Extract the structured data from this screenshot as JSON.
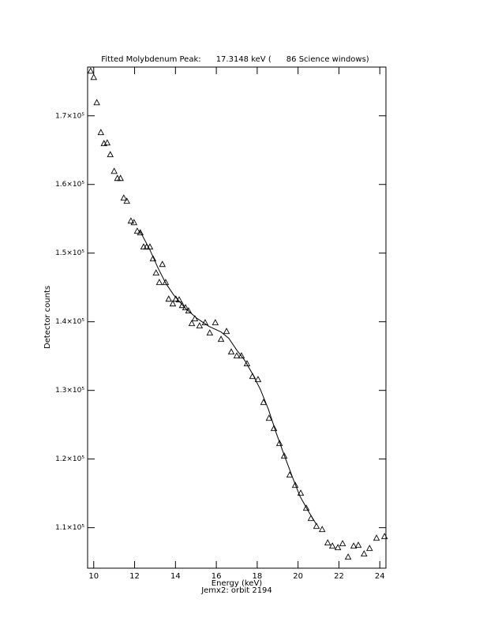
{
  "chart_data": {
    "type": "scatter",
    "title": "Fitted Molybdenum Peak:      17.3148 keV (      86 Science windows)",
    "x_label": "Energy (keV)",
    "subtitle": "Jemx2: orbit 2194",
    "y_label": "Detector counts",
    "color": "#000000",
    "xlim": [
      9.7,
      24.3
    ],
    "xticks": [
      10,
      12,
      14,
      16,
      18,
      20,
      22,
      24
    ],
    "ylim": [
      104100,
      177100
    ],
    "yticks": [
      {
        "value": 110000,
        "label": "1.1×10⁵"
      },
      {
        "value": 120000,
        "label": "1.2×10⁵"
      },
      {
        "value": 130000,
        "label": "1.3×10⁵"
      },
      {
        "value": 140000,
        "label": "1.4×10⁵"
      },
      {
        "value": 150000,
        "label": "1.5×10⁵"
      },
      {
        "value": 160000,
        "label": "1.6×10⁵"
      },
      {
        "value": 170000,
        "label": "1.7×10⁵"
      }
    ],
    "series": [
      {
        "mode": "markers",
        "x": [
          9.85,
          10.0,
          10.15,
          10.35,
          10.5,
          10.66,
          10.81,
          11.0,
          11.16,
          11.31,
          11.47,
          11.62,
          11.82,
          11.97,
          12.13,
          12.28,
          12.44,
          12.59,
          12.75,
          12.9,
          13.05,
          13.21,
          13.36,
          13.52,
          13.67,
          13.87,
          14.02,
          14.18,
          14.33,
          14.49,
          14.64,
          14.8,
          14.95,
          15.18,
          15.45,
          15.68,
          15.95,
          16.23,
          16.5,
          16.73,
          17.0,
          17.23,
          17.5,
          17.77,
          18.04,
          18.31,
          18.58,
          18.82,
          19.09,
          19.32,
          19.59,
          19.86,
          20.13,
          20.4,
          20.63,
          20.9,
          21.18,
          21.45,
          21.68,
          21.95,
          22.18,
          22.45,
          22.72,
          22.95,
          23.23,
          23.5,
          23.84,
          24.23
        ],
        "values": [
          176550,
          175630,
          171950,
          167590,
          165980,
          166090,
          164370,
          161950,
          160920,
          160920,
          158050,
          157590,
          154710,
          154480,
          153220,
          152990,
          150920,
          150920,
          150920,
          149200,
          147130,
          145750,
          148390,
          145750,
          143330,
          142640,
          143330,
          143220,
          142410,
          142070,
          141610,
          139770,
          140460,
          139430,
          139890,
          138390,
          139890,
          137470,
          138620,
          135630,
          135060,
          135060,
          133910,
          132070,
          131610,
          128280,
          125980,
          124480,
          122300,
          120460,
          117700,
          116210,
          115060,
          112870,
          111380,
          110230,
          109770,
          107820,
          107360,
          107130,
          107700,
          105750,
          107360,
          107470,
          106210,
          107010,
          108510,
          108740
        ]
      },
      {
        "mode": "line",
        "x": [
          12.24,
          12.75,
          13.13,
          13.52,
          13.91,
          14.49,
          15.07,
          15.65,
          16.23,
          16.61,
          17.0,
          17.39,
          17.77,
          18.16,
          18.55,
          18.93,
          19.32,
          19.71,
          20.09,
          20.48,
          20.9
        ],
        "values": [
          153340,
          150460,
          147930,
          145630,
          143910,
          141950,
          140460,
          139310,
          138510,
          137590,
          135860,
          134370,
          132410,
          130110,
          127240,
          123790,
          120570,
          117470,
          114600,
          112530,
          110460
        ]
      }
    ]
  }
}
